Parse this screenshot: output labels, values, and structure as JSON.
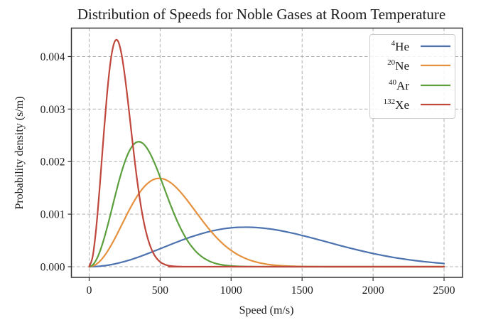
{
  "chart_data": {
    "type": "line",
    "title": "Distribution of Speeds for Noble Gases at Room Temperature",
    "xlabel": "Speed (m/s)",
    "ylabel": "Probability density (s/m)",
    "xlim": [
      -125,
      2630
    ],
    "ylim": [
      -0.000203,
      0.004541
    ],
    "xticks": [
      0,
      500,
      1000,
      1500,
      2000,
      2500
    ],
    "xtick_labels": [
      "0",
      "500",
      "1000",
      "1500",
      "2000",
      "2500"
    ],
    "yticks": [
      0.0,
      0.001,
      0.002,
      0.003,
      0.004
    ],
    "ytick_labels": [
      "0.000",
      "0.001",
      "0.002",
      "0.003",
      "0.004"
    ],
    "grid": true,
    "grid_style": "dashed",
    "legend_position": "upper-right",
    "series": [
      {
        "name": "4He",
        "label_mass": "4",
        "label_symbol": "He",
        "color": "#4c72b0",
        "speeds": [
          0,
          25,
          50,
          75,
          100,
          125,
          150,
          175,
          200,
          225,
          250,
          275,
          300,
          325,
          350,
          375,
          400,
          425,
          450,
          475,
          500,
          550,
          600,
          650,
          700,
          750,
          800,
          850,
          900,
          950,
          1000,
          1050,
          1100,
          1150,
          1200,
          1250,
          1300,
          1350,
          1400,
          1450,
          1500,
          1550,
          1600,
          1650,
          1700,
          1750,
          1800,
          1850,
          1900,
          1950,
          2000,
          2050,
          2100,
          2150,
          2200,
          2250,
          2300,
          2350,
          2400,
          2450,
          2500
        ],
        "density": [
          0,
          1.05e-06,
          4.19e-06,
          9.41e-06,
          1.67e-05,
          2.59e-05,
          3.71e-05,
          5.02e-05,
          6.5e-05,
          8.16e-05,
          9.98e-05,
          0.000119,
          0.00014,
          0.000163,
          0.000186,
          0.000211,
          0.000236,
          0.000262,
          0.000288,
          0.000315,
          0.000342,
          0.000396,
          0.00045,
          0.000502,
          0.000551,
          0.000595,
          0.000636,
          0.000671,
          0.0007,
          0.000723,
          0.000739,
          0.000749,
          0.000752,
          0.00075,
          0.000741,
          0.000727,
          0.000709,
          0.000685,
          0.000658,
          0.000628,
          0.000595,
          0.000561,
          0.000525,
          0.000489,
          0.000452,
          0.000416,
          0.00038,
          0.000346,
          0.000313,
          0.000281,
          0.000251,
          0.000224,
          0.000198,
          0.000174,
          0.000153,
          0.000133,
          0.000115,
          9.94e-05,
          8.53e-05,
          7.28e-05,
          6.19e-05
        ]
      },
      {
        "name": "20Ne",
        "label_mass": "20",
        "label_symbol": "Ne",
        "color": "#e5913e",
        "speeds": [
          0,
          25,
          50,
          75,
          100,
          125,
          150,
          175,
          200,
          225,
          250,
          275,
          300,
          325,
          350,
          375,
          400,
          425,
          450,
          475,
          500,
          525,
          550,
          575,
          600,
          625,
          650,
          675,
          700,
          725,
          750,
          775,
          800,
          825,
          850,
          875,
          900,
          925,
          950,
          975,
          1000,
          1025,
          1050,
          1075,
          1100,
          1125,
          1150,
          1175,
          1200,
          1225,
          1250,
          1275,
          1300,
          1325,
          1350,
          1375,
          1400,
          1425,
          1450,
          1475,
          1500,
          1525,
          1550,
          1575,
          1600,
          1650,
          1700,
          2500
        ],
        "density": [
          0,
          1.17e-05,
          4.64e-05,
          0.000103,
          0.00018,
          0.000275,
          0.000385,
          0.000507,
          0.000637,
          0.000771,
          0.000907,
          0.00104,
          0.001167,
          0.001284,
          0.00139,
          0.001481,
          0.001556,
          0.001614,
          0.001655,
          0.001677,
          0.001681,
          0.001669,
          0.00164,
          0.001597,
          0.001542,
          0.001475,
          0.0014,
          0.001318,
          0.001231,
          0.001141,
          0.00105,
          0.000959,
          0.000869,
          0.000783,
          0.000699,
          0.000621,
          0.000547,
          0.00048,
          0.000417,
          0.000361,
          0.00031,
          0.000265,
          0.000224,
          0.000189,
          0.000159,
          0.000132,
          0.000109,
          8.98e-05,
          7.34e-05,
          5.96e-05,
          4.81e-05,
          3.87e-05,
          3.09e-05,
          2.45e-05,
          1.93e-05,
          1.52e-05,
          1.18e-05,
          9.2e-06,
          7.1e-06,
          5.4e-06,
          4.1e-06,
          3.1e-06,
          2.4e-06,
          1.8e-06,
          1.3e-06,
          7e-07,
          4e-07,
          0
        ]
      },
      {
        "name": "40Ar",
        "label_mass": "40",
        "label_symbol": "Ar",
        "color": "#5ca03e",
        "speeds": [
          0,
          25,
          50,
          75,
          100,
          125,
          150,
          175,
          200,
          225,
          250,
          275,
          300,
          325,
          350,
          375,
          400,
          425,
          450,
          475,
          500,
          525,
          550,
          575,
          600,
          625,
          650,
          675,
          700,
          725,
          750,
          775,
          800,
          825,
          850,
          875,
          900,
          925,
          950,
          975,
          1000,
          1025,
          1050,
          1075,
          1100,
          1125,
          1150,
          1175,
          1200,
          2500
        ],
        "density": [
          0,
          3.3e-05,
          0.00013,
          0.000285,
          0.000489,
          0.000729,
          0.000992,
          0.001263,
          0.001528,
          0.001773,
          0.001985,
          0.002157,
          0.002281,
          0.002355,
          0.002379,
          0.002353,
          0.002283,
          0.002176,
          0.002039,
          0.001879,
          0.001705,
          0.001523,
          0.001341,
          0.001163,
          0.000996,
          0.00084,
          0.0007,
          0.000575,
          0.000466,
          0.000374,
          0.000295,
          0.000231,
          0.000178,
          0.000136,
          0.000102,
          7.59e-05,
          5.58e-05,
          4.05e-05,
          2.91e-05,
          2.07e-05,
          1.45e-05,
          1e-05,
          6.9e-06,
          4.7e-06,
          3.1e-06,
          2.1e-06,
          1.3e-06,
          8e-07,
          5e-07,
          0
        ]
      },
      {
        "name": "132Xe",
        "label_mass": "132",
        "label_symbol": "Xe",
        "color": "#c0473b",
        "speeds": [
          0,
          25,
          50,
          75,
          100,
          125,
          150,
          175,
          200,
          225,
          250,
          275,
          300,
          325,
          350,
          375,
          400,
          425,
          450,
          475,
          500,
          525,
          550,
          575,
          600,
          625,
          650,
          675,
          700,
          2500
        ],
        "density": [
          0,
          0.000195,
          0.000743,
          0.001535,
          0.002425,
          0.003254,
          0.00389,
          0.004249,
          0.004306,
          0.004088,
          0.003658,
          0.003103,
          0.002503,
          0.001924,
          0.001413,
          0.000993,
          0.000668,
          0.000432,
          0.000268,
          0.00016,
          9.15e-05,
          5.04e-05,
          2.67e-05,
          1.36e-05,
          6.7e-06,
          3.2e-06,
          1.5e-06,
          6e-07,
          3e-07,
          0
        ]
      }
    ]
  }
}
